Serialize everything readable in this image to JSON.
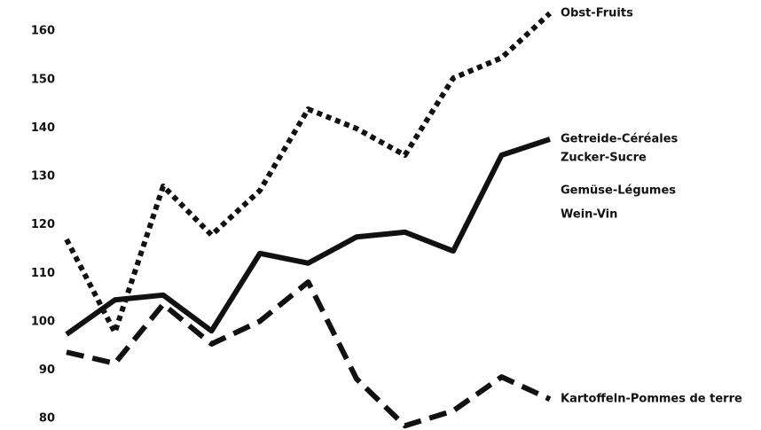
{
  "chart_data": {
    "type": "line",
    "ylim": [
      78,
      165
    ],
    "yticks": [
      80,
      90,
      100,
      110,
      120,
      130,
      140,
      150,
      160
    ],
    "series": [
      {
        "name": "Obst-Fruits",
        "color": "#111111",
        "style": "dotted",
        "values": [
          117,
          97.8,
          128,
          117.9,
          127.1,
          143.9,
          139.9,
          134.4,
          150.3,
          154.5,
          163.7
        ]
      },
      {
        "name": "Getreide-Céréales",
        "color": "#111111",
        "style": "solid",
        "values": [
          97.4,
          104.5,
          105.5,
          98.1,
          114.1,
          112.1,
          117.5,
          118.5,
          114.6,
          134.4,
          137.7
        ]
      },
      {
        "name": "Kartoffeln-Pommes de terre",
        "color": "#111111",
        "style": "dashed",
        "values": [
          93.7,
          91.4,
          103.6,
          95.4,
          100.1,
          108.2,
          88.2,
          78.5,
          81.6,
          88.6,
          84
        ]
      }
    ],
    "annotations": [
      "Zucker-Sucre",
      "Gemüse-Légumes",
      "Wein-Vin"
    ]
  }
}
